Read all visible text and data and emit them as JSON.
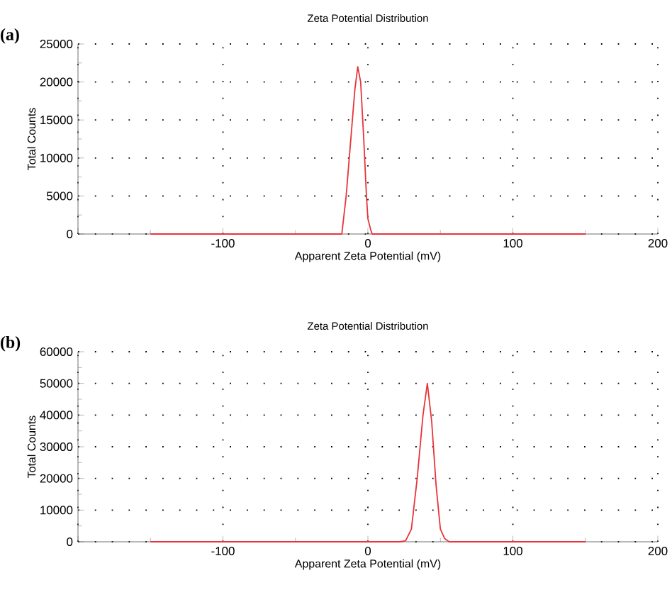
{
  "chart_data": [
    {
      "type": "line",
      "title": "Zeta Potential Distribution",
      "xlabel": "Apparent Zeta Potential (mV)",
      "ylabel": "Total Counts",
      "annotations": [
        "(a)"
      ],
      "x": [
        -150,
        -18,
        -15,
        -12,
        -9,
        -7,
        -5,
        -3,
        -1,
        0,
        2,
        3,
        150
      ],
      "series": [
        {
          "color": "#e8343c",
          "values": [
            0,
            0,
            5000,
            12000,
            19000,
            22000,
            20000,
            13000,
            5000,
            2000,
            500,
            0,
            0
          ]
        }
      ],
      "xlim": [
        -200,
        200
      ],
      "xticks": [
        {
          "value": -200,
          "label": null
        },
        -100,
        0,
        100,
        200
      ],
      "ylim": [
        0,
        25000
      ],
      "yticks": [
        0,
        5000,
        10000,
        15000,
        20000,
        25000
      ],
      "grid": true,
      "marker": "none",
      "line_style": "solid"
    },
    {
      "type": "line",
      "title": "Zeta Potential Distribution",
      "xlabel": "Apparent Zeta Potential (mV)",
      "ylabel": "Total Counts",
      "annotations": [
        "(b)"
      ],
      "x": [
        -150,
        22,
        26,
        30,
        34,
        38,
        41,
        44,
        47,
        50,
        53,
        56,
        150
      ],
      "series": [
        {
          "color": "#e8343c",
          "values": [
            0,
            0,
            300,
            4000,
            20000,
            40000,
            50000,
            38000,
            18000,
            4000,
            1000,
            0,
            0
          ]
        }
      ],
      "xlim": [
        -200,
        200
      ],
      "xticks": [
        {
          "value": -200,
          "label": null
        },
        -100,
        0,
        100,
        200
      ],
      "ylim": [
        0,
        60000
      ],
      "yticks": [
        0,
        10000,
        20000,
        30000,
        40000,
        50000,
        60000
      ],
      "grid": true,
      "marker": "none",
      "line_style": "solid"
    }
  ]
}
